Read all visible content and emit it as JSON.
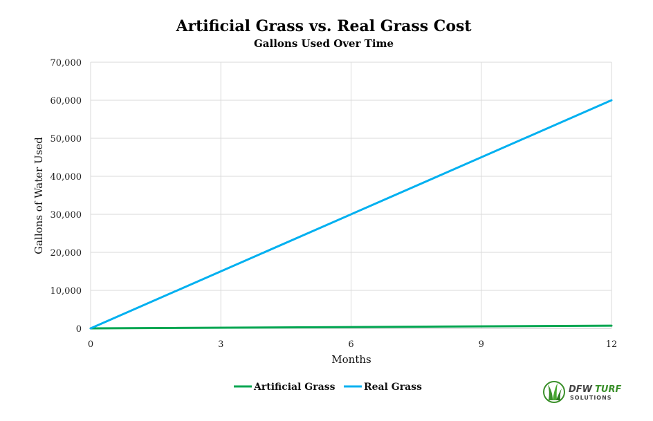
{
  "chart_data": {
    "type": "line",
    "title": "Artificial Grass vs. Real Grass Cost",
    "subtitle": "Gallons Used Over Time",
    "xlabel": "Months",
    "ylabel": "Gallons of Water Used",
    "xlim": [
      0,
      12
    ],
    "ylim": [
      0,
      70000
    ],
    "x_ticks": [
      0,
      3,
      6,
      9,
      12
    ],
    "y_ticks": [
      0,
      10000,
      20000,
      30000,
      40000,
      50000,
      60000,
      70000
    ],
    "x_tick_labels": [
      "0",
      "3",
      "6",
      "9",
      "12"
    ],
    "y_tick_labels": [
      "0",
      "10,000",
      "20,000",
      "30,000",
      "40,000",
      "50,000",
      "60,000",
      "70,000"
    ],
    "grid": true,
    "legend_position": "bottom",
    "series": [
      {
        "name": "Artificial Grass",
        "color": "#00a651",
        "x": [
          0,
          12
        ],
        "y": [
          0,
          700
        ]
      },
      {
        "name": "Real Grass",
        "color": "#00b0f0",
        "x": [
          0,
          12
        ],
        "y": [
          0,
          60000
        ]
      }
    ]
  },
  "logo": {
    "main": "DFW TURF",
    "sub": "SOLUTIONS",
    "colors": {
      "green": "#3a8f2a",
      "dark": "#444444"
    }
  }
}
